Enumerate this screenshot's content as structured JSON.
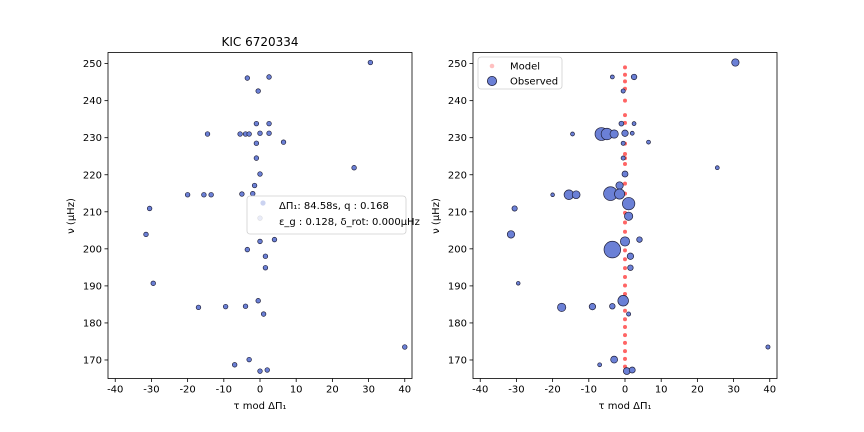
{
  "colors": {
    "observed_fill": "#6b80d6",
    "observed_edge": "#1f1f3a",
    "model": "#ff4a4a",
    "frame": "#000000"
  },
  "chart_data": [
    {
      "type": "scatter",
      "title": "KIC 6720334",
      "xlabel": "τ mod ΔΠ₁",
      "ylabel": "ν (μHz)",
      "xlim": [
        -42,
        42
      ],
      "ylim": [
        165,
        253
      ],
      "xticks": [
        -40,
        -30,
        -20,
        -10,
        0,
        10,
        20,
        30,
        40
      ],
      "yticks": [
        170,
        180,
        190,
        200,
        210,
        220,
        230,
        240,
        250
      ],
      "annotation": {
        "line1": "ΔΠ₁: 84.58s, q : 0.168",
        "line2": "ε_g : 0.128, δ_rot: 0.000μHz",
        "marker_x": 0.8,
        "marker_y": 212.1,
        "marker_color": "#6b80d6"
      },
      "series": [
        {
          "points": [
            [
              30.5,
              250.3
            ],
            [
              -3.5,
              246.1
            ],
            [
              2.5,
              246.4
            ],
            [
              -0.5,
              242.6
            ],
            [
              -1.0,
              233.8
            ],
            [
              2.5,
              233.8
            ],
            [
              -14.5,
              231.0
            ],
            [
              -5.5,
              231.0
            ],
            [
              -4.0,
              231.0
            ],
            [
              -3.0,
              231.0
            ],
            [
              0.0,
              231.2
            ],
            [
              2.5,
              231.2
            ],
            [
              -1.0,
              228.5
            ],
            [
              6.5,
              228.8
            ],
            [
              -1.0,
              224.5
            ],
            [
              0.0,
              220.2
            ],
            [
              26.0,
              221.9
            ],
            [
              -1.5,
              217.1
            ],
            [
              -20.0,
              214.6
            ],
            [
              -15.5,
              214.6
            ],
            [
              -13.5,
              214.6
            ],
            [
              -5.0,
              214.8
            ],
            [
              -2.0,
              214.9
            ],
            [
              -30.5,
              210.9
            ],
            [
              0.0,
              208.3
            ],
            [
              -31.5,
              203.9
            ],
            [
              0.0,
              202.0
            ],
            [
              4.0,
              202.5
            ],
            [
              -3.5,
              199.8
            ],
            [
              1.5,
              198.0
            ],
            [
              1.5,
              194.9
            ],
            [
              -29.5,
              190.7
            ],
            [
              -0.5,
              186.0
            ],
            [
              -17.0,
              184.2
            ],
            [
              -9.5,
              184.4
            ],
            [
              -4.0,
              184.5
            ],
            [
              1.0,
              182.4
            ],
            [
              40.0,
              173.5
            ],
            [
              -3.0,
              170.1
            ],
            [
              -7.0,
              168.7
            ],
            [
              0.0,
              167.0
            ],
            [
              2.0,
              167.3
            ]
          ]
        }
      ]
    },
    {
      "type": "scatter",
      "xlabel": "τ mod ΔΠ₁",
      "ylabel": "ν (μHz)",
      "xlim": [
        -42,
        42
      ],
      "ylim": [
        165,
        253
      ],
      "xticks": [
        -40,
        -30,
        -20,
        -10,
        0,
        10,
        20,
        30,
        40
      ],
      "yticks": [
        170,
        180,
        190,
        200,
        210,
        220,
        230,
        240,
        250
      ],
      "legend": {
        "placement": "upper-left",
        "model_label": "Model",
        "observed_label": "Observed"
      },
      "model": {
        "name": "Model",
        "x": 0.0,
        "y": [
          167.0,
          168.2,
          170.3,
          172.4,
          174.6,
          176.7,
          178.9,
          181.0,
          183.3,
          185.5,
          187.8,
          190.1,
          192.4,
          194.8,
          197.2,
          199.6,
          202.1,
          204.6,
          207.1,
          209.7,
          212.3,
          214.9,
          217.6,
          220.3,
          222.9,
          224.5,
          225.6,
          228.4,
          231.2,
          234.0,
          236.1,
          240.0,
          243.2,
          245.2,
          247.0,
          249.0
        ]
      },
      "observed": {
        "name": "Observed",
        "points": [
          [
            30.5,
            250.3,
            1.0
          ],
          [
            -3.5,
            246.4,
            0.25
          ],
          [
            2.5,
            246.4,
            0.6
          ],
          [
            -0.5,
            242.6,
            0.3
          ],
          [
            -1.0,
            233.8,
            0.45
          ],
          [
            2.5,
            233.8,
            0.25
          ],
          [
            -14.5,
            231.0,
            0.25
          ],
          [
            -6.5,
            231.0,
            2.2
          ],
          [
            -5.0,
            231.0,
            1.9
          ],
          [
            -3.0,
            231.0,
            1.2
          ],
          [
            0.0,
            231.2,
            0.8
          ],
          [
            2.0,
            231.2,
            0.25
          ],
          [
            -0.5,
            228.5,
            0.3
          ],
          [
            6.5,
            228.8,
            0.25
          ],
          [
            -0.5,
            224.5,
            0.3
          ],
          [
            0.0,
            220.2,
            0.7
          ],
          [
            25.5,
            221.9,
            0.25
          ],
          [
            -1.5,
            217.1,
            1.0
          ],
          [
            -20.0,
            214.6,
            0.2
          ],
          [
            -15.5,
            214.6,
            1.5
          ],
          [
            -13.5,
            214.6,
            1.1
          ],
          [
            -4.0,
            214.9,
            2.4
          ],
          [
            -1.5,
            214.8,
            1.6
          ],
          [
            -30.5,
            210.9,
            0.55
          ],
          [
            1.0,
            212.2,
            2.1
          ],
          [
            1.0,
            208.8,
            1.2
          ],
          [
            -31.5,
            203.9,
            1.0
          ],
          [
            0.0,
            202.0,
            1.4
          ],
          [
            4.0,
            202.5,
            0.6
          ],
          [
            -3.5,
            199.8,
            3.0
          ],
          [
            1.5,
            198.0,
            0.8
          ],
          [
            1.5,
            194.9,
            0.6
          ],
          [
            -29.5,
            190.7,
            0.2
          ],
          [
            -0.5,
            186.0,
            1.7
          ],
          [
            -17.5,
            184.2,
            1.2
          ],
          [
            -9.0,
            184.4,
            0.8
          ],
          [
            -3.5,
            184.5,
            0.6
          ],
          [
            1.0,
            182.4,
            0.3
          ],
          [
            39.5,
            173.5,
            0.3
          ],
          [
            -3.0,
            170.1,
            0.9
          ],
          [
            -7.0,
            168.7,
            0.25
          ],
          [
            0.5,
            167.0,
            0.9
          ],
          [
            2.0,
            167.3,
            0.7
          ]
        ]
      }
    }
  ]
}
